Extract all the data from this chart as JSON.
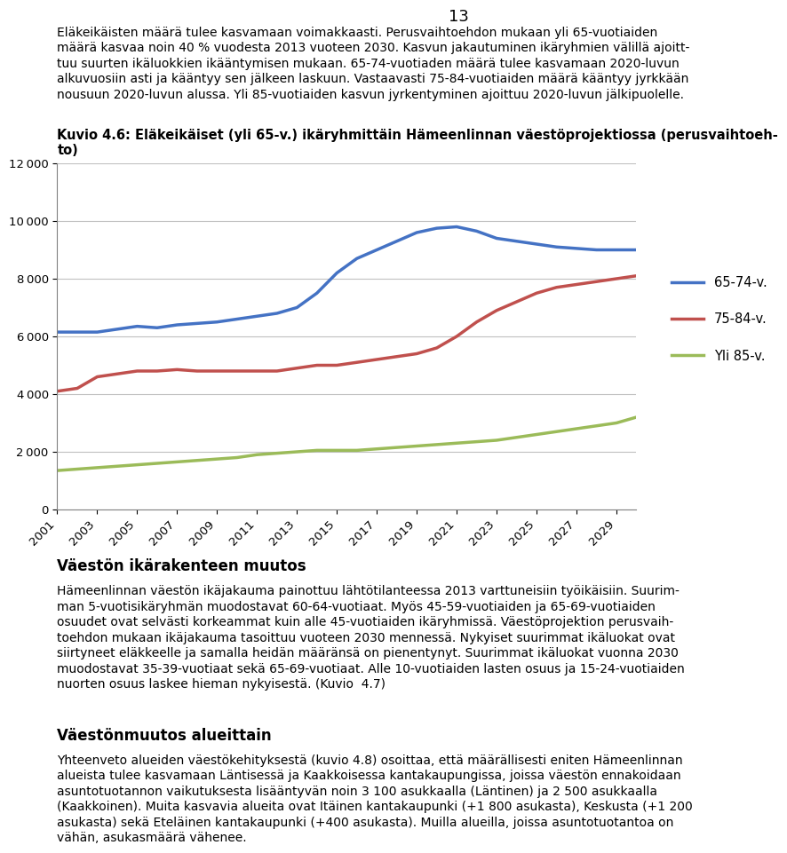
{
  "page_number": "13",
  "intro_text_lines": [
    "Eläkeikäisten määrä tulee kasvamaan voimakkaasti. Perusvaihtoehdon mukaan yli 65-vuotiaiden",
    "määrä kasvaa noin 40 % vuodesta 2013 vuoteen 2030. Kasvun jakautuminen ikäryhmien välillä ajoitt-",
    "tuu suurten ikäluokkien ikääntymisen mukaan. 65-74-vuotiaden määrä tulee kasvamaan 2020-luvun",
    "alkuvuosiin asti ja kääntyy sen jälkeen laskuun. Vastaavasti 75-84-vuotiaiden määrä kääntyy jyrkkään",
    "nousuun 2020-luvun alussa. Yli 85-vuotiaiden kasvun jyrkentyminen ajoittuu 2020-luvun jälkipuolelle."
  ],
  "chart_title_line1": "Kuvio 4.6: Eläkeikäiset (yli 65-v.) ikäryhmittäin Hämeenlinnan väestöprojektiossa (perusvaihtoeh-",
  "chart_title_line2": "to)",
  "section1_title": "Väestön ikärakenteen muutos",
  "section1_text_lines": [
    "Hämeenlinnan väestön ikäjakauma painottuu lähtötilanteessa 2013 varttuneisiin työikäisiin. Suurim-",
    "man 5-vuotisikäryhmän muodostavat 60-64-vuotiaat. Myös 45-59-vuotiaiden ja 65-69-vuotiaiden",
    "osuudet ovat selvästi korkeammat kuin alle 45-vuotiaiden ikäryhmissä. Väestöprojektion perusvaih-",
    "toehdon mukaan ikäjakauma tasoittuu vuoteen 2030 mennessä. Nykyiset suurimmat ikäluokat ovat",
    "siirtyneet eläkkeelle ja samalla heidän määränsä on pienentynyt. Suurimmat ikäluokat vuonna 2030",
    "muodostavat 35-39-vuotiaat sekä 65-69-vuotiaat. Alle 10-vuotiaiden lasten osuus ja 15-24-vuotiaiden",
    "nuorten osuus laskee hieman nykyisestä. (Kuvio  4.7)"
  ],
  "section2_title": "Väestönmuutos alueittain",
  "section2_text_lines": [
    "Yhteenveto alueiden väestökehityksestä (kuvio 4.8) osoittaa, että määrällisesti eniten Hämeenlinnan",
    "alueista tulee kasvamaan Läntisessä ja Kaakkoisessa kantakaupungissa, joissa väestön ennakoidaan",
    "asuntotuotannon vaikutuksesta lisääntyvän noin 3 100 asukkaalla (Läntinen) ja 2 500 asukkaalla",
    "(Kaakkoinen). Muita kasvavia alueita ovat Itäinen kantakaupunki (+1 800 asukasta), Keskusta (+1 200",
    "asukasta) sekä Eteläinen kantakaupunki (+400 asukasta). Muilla alueilla, joissa asuntotuotantoa on",
    "vähän, asukasmäärä vähenee."
  ],
  "years": [
    2001,
    2002,
    2003,
    2004,
    2005,
    2006,
    2007,
    2008,
    2009,
    2010,
    2011,
    2012,
    2013,
    2014,
    2015,
    2016,
    2017,
    2018,
    2019,
    2020,
    2021,
    2022,
    2023,
    2024,
    2025,
    2026,
    2027,
    2028,
    2029,
    2030
  ],
  "line1_values": [
    6150,
    6150,
    6150,
    6250,
    6350,
    6300,
    6400,
    6450,
    6500,
    6600,
    6700,
    6800,
    7000,
    7500,
    8200,
    8700,
    9000,
    9300,
    9600,
    9750,
    9800,
    9650,
    9400,
    9300,
    9200,
    9100,
    9050,
    9000,
    9000,
    9000
  ],
  "line2_values": [
    4100,
    4200,
    4600,
    4700,
    4800,
    4800,
    4850,
    4800,
    4800,
    4800,
    4800,
    4800,
    4900,
    5000,
    5000,
    5100,
    5200,
    5300,
    5400,
    5600,
    6000,
    6500,
    6900,
    7200,
    7500,
    7700,
    7800,
    7900,
    8000,
    8100
  ],
  "line3_values": [
    1350,
    1400,
    1450,
    1500,
    1550,
    1600,
    1650,
    1700,
    1750,
    1800,
    1900,
    1950,
    2000,
    2050,
    2050,
    2050,
    2100,
    2150,
    2200,
    2250,
    2300,
    2350,
    2400,
    2500,
    2600,
    2700,
    2800,
    2900,
    3000,
    3200
  ],
  "line1_color": "#4472C4",
  "line2_color": "#C0504D",
  "line3_color": "#9BBB59",
  "line1_label": "65-74-v.",
  "line2_label": "75-84-v.",
  "line3_label": "Yli 85-v.",
  "ylim": [
    0,
    12000
  ],
  "yticks": [
    0,
    2000,
    4000,
    6000,
    8000,
    10000,
    12000
  ],
  "bg_color": "#FFFFFF",
  "chart_bg": "#FFFFFF",
  "grid_color": "#C0C0C0",
  "line_width": 2.5
}
